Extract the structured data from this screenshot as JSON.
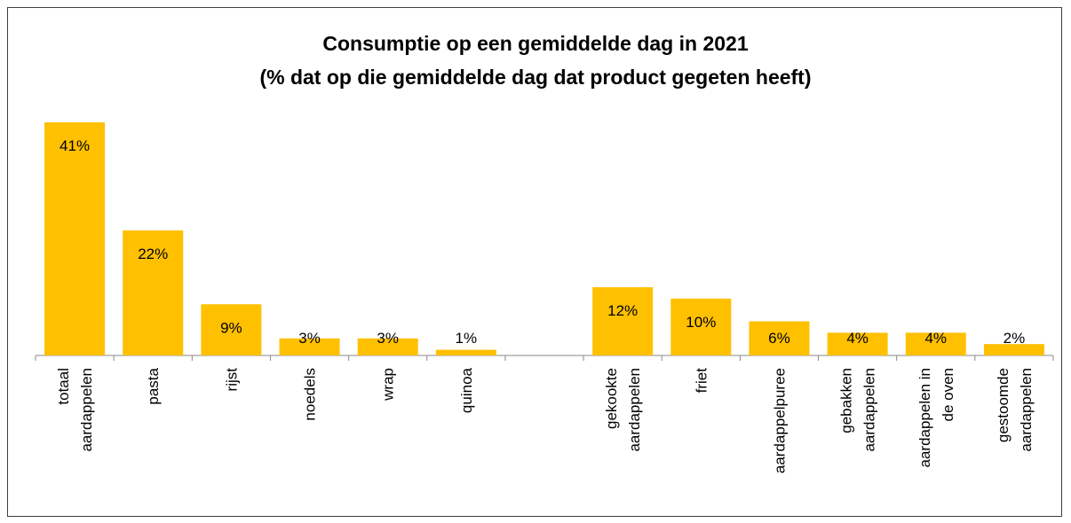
{
  "chart_data": {
    "type": "bar",
    "title": [
      "Consumptie op een gemiddelde dag in 2021",
      "(% dat op die gemiddelde dag dat product gegeten heeft)"
    ],
    "categories": [
      [
        "totaal",
        "aardappelen"
      ],
      [
        "pasta"
      ],
      [
        "rijst"
      ],
      [
        "noedels"
      ],
      [
        "wrap"
      ],
      [
        "quinoa"
      ],
      [],
      [
        "gekookte",
        "aardappelen"
      ],
      [
        "friet"
      ],
      [
        "aardappelpuree"
      ],
      [
        "gebakken",
        "aardappelen"
      ],
      [
        "aardappelen in",
        "de oven"
      ],
      [
        "gestoomde",
        "aardappelen"
      ]
    ],
    "values": [
      41,
      22,
      9,
      3,
      3,
      1,
      null,
      12,
      10,
      6,
      4,
      4,
      2
    ],
    "data_labels": [
      "41%",
      "22%",
      "9%",
      "3%",
      "3%",
      "1%",
      "",
      "12%",
      "10%",
      "6%",
      "4%",
      "4%",
      "2%"
    ],
    "ylim": [
      0,
      45
    ],
    "grid": false,
    "legend": "none",
    "bar_color": "#FFC000"
  }
}
